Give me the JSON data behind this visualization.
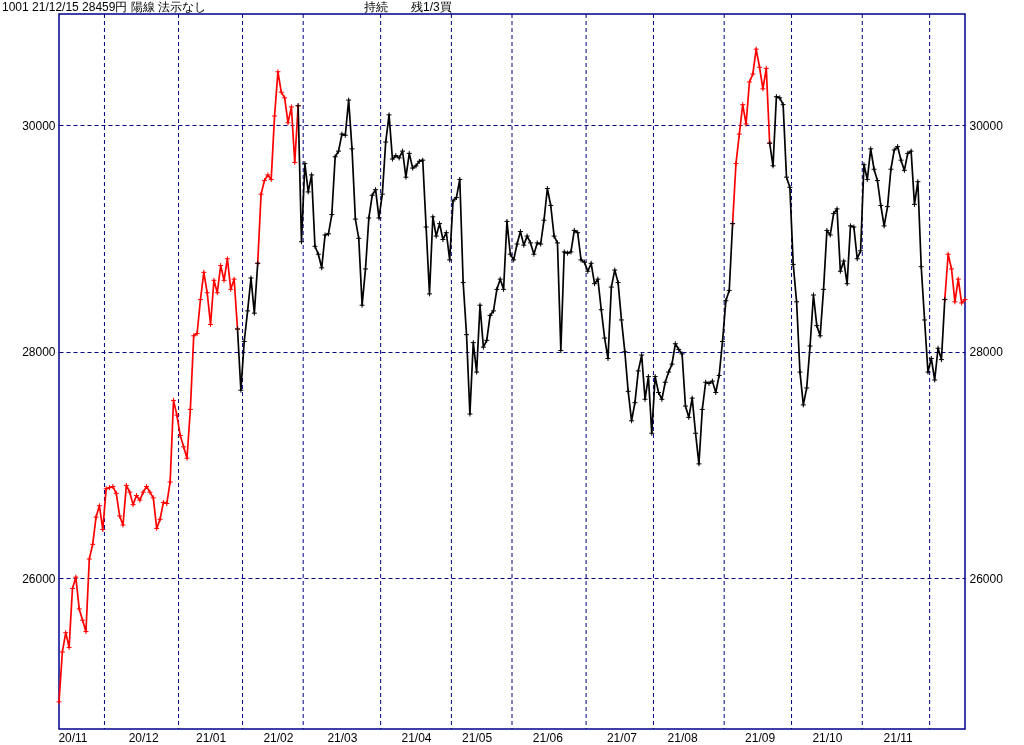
{
  "chart_data": {
    "type": "line",
    "title": "1001 21/12/15 28459円 陽線 法示なし",
    "annotations": [
      "持続",
      "残1/3買"
    ],
    "categories": [
      null,
      null,
      null,
      null,
      "20/11",
      null,
      null,
      null,
      null,
      null,
      null,
      null,
      null,
      null,
      null,
      null,
      null,
      null,
      null,
      null,
      null,
      null,
      null,
      null,
      null,
      "20/12",
      null,
      null,
      null,
      null,
      null,
      null,
      null,
      null,
      null,
      null,
      null,
      null,
      null,
      null,
      null,
      null,
      null,
      null,
      null,
      "21/01",
      null,
      null,
      null,
      null,
      null,
      null,
      null,
      null,
      null,
      null,
      null,
      null,
      null,
      null,
      null,
      null,
      null,
      null,
      null,
      "21/02",
      null,
      null,
      null,
      null,
      null,
      null,
      null,
      null,
      null,
      null,
      null,
      null,
      null,
      null,
      null,
      null,
      null,
      null,
      "21/03",
      null,
      null,
      null,
      null,
      null,
      null,
      null,
      null,
      null,
      null,
      null,
      null,
      null,
      null,
      null,
      null,
      null,
      null,
      null,
      null,
      null,
      "21/04",
      null,
      null,
      null,
      null,
      null,
      null,
      null,
      null,
      null,
      null,
      null,
      null,
      null,
      null,
      null,
      null,
      null,
      "21/05",
      null,
      null,
      null,
      null,
      null,
      null,
      null,
      null,
      null,
      null,
      null,
      null,
      null,
      null,
      null,
      null,
      null,
      null,
      null,
      null,
      "21/06",
      null,
      null,
      null,
      null,
      null,
      null,
      null,
      null,
      null,
      null,
      null,
      null,
      null,
      null,
      null,
      null,
      null,
      null,
      null,
      null,
      null,
      "21/07",
      null,
      null,
      null,
      null,
      null,
      null,
      null,
      null,
      null,
      null,
      null,
      null,
      null,
      null,
      null,
      null,
      null,
      "21/08",
      null,
      null,
      null,
      null,
      null,
      null,
      null,
      null,
      null,
      null,
      null,
      null,
      null,
      null,
      null,
      null,
      null,
      null,
      null,
      null,
      null,
      null,
      "21/09",
      null,
      null,
      null,
      null,
      null,
      null,
      null,
      null,
      null,
      null,
      null,
      null,
      null,
      null,
      null,
      null,
      null,
      null,
      null,
      "21/10",
      null,
      null,
      null,
      null,
      null,
      null,
      null,
      null,
      null,
      null,
      null,
      null,
      null,
      null,
      null,
      null,
      null,
      null,
      null,
      null,
      "21/11",
      null,
      null,
      null,
      null,
      null,
      null,
      null,
      null,
      null,
      null,
      null,
      null,
      null,
      null,
      null,
      null,
      null,
      null,
      null,
      null
    ],
    "series": [
      {
        "color": "#ff0000",
        "values": [
          24910,
          25350,
          25520,
          25390,
          25910,
          26010,
          25730,
          25630,
          25530,
          26170,
          26300,
          26540,
          26640,
          26430,
          26790,
          26800,
          26810,
          26750,
          26550,
          26470,
          26820,
          26760,
          26650,
          26730,
          26690,
          26760,
          26810,
          26760,
          26710,
          26440,
          26520,
          26670,
          26660,
          26850,
          27570,
          27440,
          27260,
          27160,
          27060,
          27490,
          28140,
          28160,
          28460,
          28700,
          28520,
          28240,
          28630,
          28520,
          28760,
          28630,
          28820,
          28550,
          28640,
          28200,
          null,
          null,
          null,
          null,
          null,
          28780,
          29390,
          29510,
          29560,
          29520,
          30080,
          30470,
          30290,
          30240,
          30020,
          30160,
          29670,
          30170,
          null,
          null,
          null,
          null,
          null,
          null,
          null,
          null,
          null,
          null,
          null,
          null,
          null,
          null,
          null,
          null,
          null,
          null,
          null,
          null,
          null,
          null,
          null,
          null,
          null,
          null,
          null,
          null,
          null,
          null,
          null,
          null,
          null,
          null,
          null,
          null,
          null,
          null,
          null,
          null,
          null,
          null,
          null,
          null,
          null,
          null,
          null,
          null,
          null,
          null,
          null,
          null,
          null,
          null,
          null,
          null,
          null,
          null,
          null,
          null,
          null,
          null,
          null,
          null,
          null,
          null,
          null,
          null,
          null,
          null,
          null,
          null,
          null,
          null,
          null,
          null,
          null,
          null,
          null,
          null,
          null,
          null,
          null,
          null,
          null,
          null,
          null,
          null,
          null,
          null,
          null,
          null,
          null,
          null,
          null,
          null,
          null,
          null,
          null,
          null,
          null,
          null,
          null,
          null,
          null,
          null,
          null,
          null,
          null,
          null,
          null,
          null,
          null,
          null,
          null,
          null,
          null,
          null,
          null,
          null,
          null,
          null,
          null,
          null,
          null,
          null,
          null,
          null,
          29130,
          29660,
          29920,
          30180,
          30010,
          30380,
          30450,
          30670,
          30510,
          30320,
          30500,
          29840,
          null,
          null,
          null,
          null,
          null,
          null,
          null,
          null,
          null,
          null,
          null,
          null,
          null,
          null,
          null,
          null,
          null,
          null,
          null,
          null,
          null,
          null,
          null,
          null,
          null,
          null,
          null,
          null,
          null,
          null,
          null,
          null,
          null,
          null,
          null,
          null,
          null,
          null,
          null,
          null,
          null,
          null,
          null,
          null,
          null,
          null,
          null,
          null,
          null,
          null,
          null,
          28460,
          28860,
          28730,
          28440,
          28640,
          28430,
          28460
        ]
      },
      {
        "color": "#000000",
        "values": [
          null,
          null,
          null,
          null,
          null,
          null,
          null,
          null,
          null,
          null,
          null,
          null,
          null,
          null,
          null,
          null,
          null,
          null,
          null,
          null,
          null,
          null,
          null,
          null,
          null,
          null,
          null,
          null,
          null,
          null,
          null,
          null,
          null,
          null,
          null,
          null,
          null,
          null,
          null,
          null,
          null,
          null,
          null,
          null,
          null,
          null,
          null,
          null,
          null,
          null,
          null,
          null,
          null,
          28200,
          27660,
          28090,
          28360,
          28650,
          28340,
          28780,
          null,
          null,
          null,
          null,
          null,
          null,
          null,
          null,
          null,
          null,
          null,
          30170,
          28970,
          29660,
          29410,
          29560,
          28930,
          28860,
          28740,
          29030,
          29040,
          29210,
          29720,
          29770,
          29920,
          29910,
          30220,
          29790,
          29170,
          29000,
          28410,
          28730,
          29180,
          29380,
          29430,
          29180,
          29390,
          29850,
          30090,
          29700,
          29730,
          29710,
          29770,
          29540,
          29750,
          29620,
          29640,
          29680,
          29690,
          29100,
          28510,
          29190,
          29020,
          29130,
          28990,
          29050,
          28810,
          29330,
          29360,
          29520,
          28610,
          28150,
          27450,
          28080,
          27820,
          28410,
          28040,
          28100,
          28320,
          28360,
          28550,
          28640,
          28550,
          29150,
          28860,
          28810,
          28950,
          29060,
          28940,
          29020,
          28960,
          28860,
          28960,
          28950,
          29160,
          29440,
          29290,
          29020,
          28960,
          28010,
          28880,
          28870,
          28880,
          29070,
          29050,
          28810,
          28790,
          28710,
          28780,
          28600,
          28640,
          28370,
          28120,
          27940,
          28570,
          28720,
          28610,
          28280,
          28000,
          27650,
          27390,
          27550,
          27830,
          27970,
          27580,
          27780,
          27280,
          27780,
          27640,
          27580,
          27730,
          27820,
          27890,
          28070,
          28020,
          27980,
          27520,
          27420,
          27590,
          27280,
          27010,
          27490,
          27730,
          27720,
          27740,
          27640,
          27790,
          28090,
          28450,
          28540,
          29130,
          null,
          null,
          null,
          null,
          null,
          null,
          null,
          null,
          null,
          null,
          29840,
          29640,
          30250,
          30240,
          30180,
          29540,
          29450,
          28770,
          28440,
          27820,
          27530,
          27680,
          28050,
          28500,
          28230,
          28140,
          28550,
          29070,
          29030,
          29220,
          29260,
          28710,
          28800,
          28600,
          29110,
          29100,
          28820,
          28890,
          29650,
          29520,
          29790,
          29610,
          29510,
          29290,
          29110,
          29280,
          29610,
          29780,
          29810,
          29690,
          29600,
          29750,
          29770,
          29300,
          29500,
          28750,
          28280,
          27820,
          27940,
          27750,
          28030,
          27930,
          28460,
          null,
          null,
          null,
          null,
          null,
          null
        ]
      }
    ],
    "ylim": [
      24670,
      30980
    ],
    "yticks": [
      26000,
      28000,
      30000
    ],
    "y2lim": [
      24670,
      30980
    ],
    "y2ticks": [
      26000,
      28000,
      30000
    ],
    "grid": "y",
    "marker": "cross"
  }
}
